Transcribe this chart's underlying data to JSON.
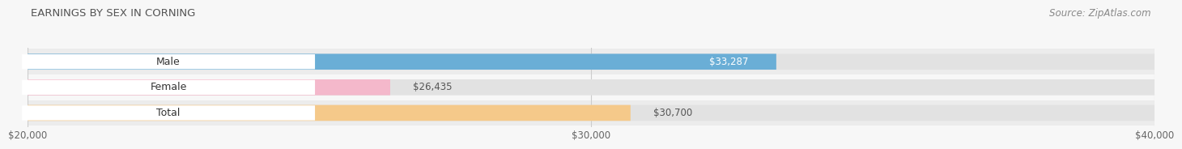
{
  "title": "EARNINGS BY SEX IN CORNING",
  "source": "Source: ZipAtlas.com",
  "categories": [
    "Male",
    "Female",
    "Total"
  ],
  "values": [
    33287,
    26435,
    30700
  ],
  "labels": [
    "$33,287",
    "$26,435",
    "$30,700"
  ],
  "label_inside": [
    true,
    false,
    false
  ],
  "label_colors": [
    "#ffffff",
    "#555555",
    "#555555"
  ],
  "bar_colors": [
    "#6aaed6",
    "#f4b8cb",
    "#f5c98a"
  ],
  "bar_bg_color": "#e2e2e2",
  "xmin": 20000,
  "xmax": 40000,
  "data_min": 0,
  "xticks": [
    20000,
    30000,
    40000
  ],
  "xtick_labels": [
    "$20,000",
    "$30,000",
    "$40,000"
  ],
  "title_fontsize": 9.5,
  "source_fontsize": 8.5,
  "label_fontsize": 8.5,
  "tick_fontsize": 8.5,
  "cat_fontsize": 9,
  "bar_height": 0.62,
  "background_color": "#f7f7f7",
  "pill_color": "#ffffff",
  "strip_bg": "#f0f0f0"
}
